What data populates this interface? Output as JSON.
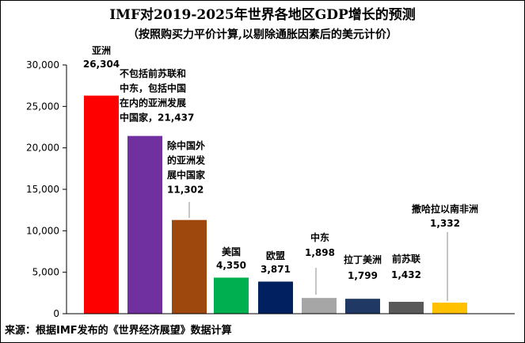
{
  "chart_data": {
    "type": "bar",
    "title": "IMF对2019-2025年世界各地区GDP增长的预测",
    "subtitle": "（按照购买力平价计算,以剔除通胀因素后的美元计价）",
    "ylim": [
      0,
      30000
    ],
    "yticks": [
      "0",
      "5,000",
      "10,000",
      "15,000",
      "20,000",
      "25,000",
      "30,000"
    ],
    "ytick_values": [
      0,
      5000,
      10000,
      15000,
      20000,
      25000,
      30000
    ],
    "categories": [
      "亚洲",
      "不包括前苏联和中东，包括中国在内的亚洲发展中国家",
      "除中国外的亚洲发展中国家",
      "美国",
      "欧盟",
      "中东",
      "拉丁美洲",
      "前苏联",
      "撒哈拉以南非洲"
    ],
    "label_lines": [
      [
        "亚洲",
        "26,304"
      ],
      [
        "不包括前苏联和",
        "中东，包括中国",
        "在内的亚洲发展",
        "中国家，21,437"
      ],
      [
        "除中国外",
        "的亚洲发",
        "展中国家",
        "11,302"
      ],
      [
        "美国",
        "4,350"
      ],
      [
        "欧盟",
        "3,871"
      ],
      [
        "中东",
        "1,898"
      ],
      [
        "拉丁美洲",
        "1,799"
      ],
      [
        "前苏联",
        "1,432"
      ],
      [
        "撒哈拉以南非洲",
        "1,332"
      ]
    ],
    "values": [
      26304,
      21437,
      11302,
      4350,
      3871,
      1898,
      1799,
      1432,
      1332
    ],
    "colors": [
      "#ff0000",
      "#7030a0",
      "#9e480e",
      "#00b050",
      "#002060",
      "#a6a6a6",
      "#1f3864",
      "#595959",
      "#ffc000"
    ],
    "source": "来源：根据IMF发布的《世界经济展望》数据计算"
  }
}
